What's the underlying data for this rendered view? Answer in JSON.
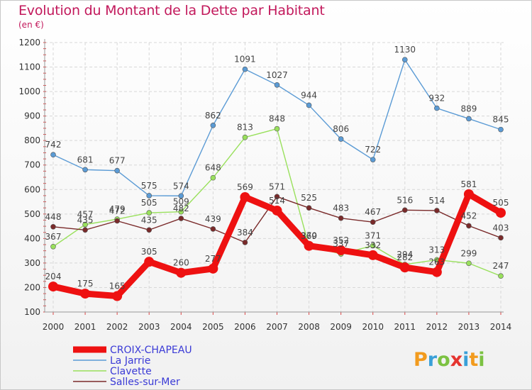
{
  "chart_data": {
    "type": "line",
    "title": "Evolution du Montant de la Dette par Habitant",
    "subtitle": "(en €)",
    "x": [
      "2000",
      "2001",
      "2002",
      "2003",
      "2004",
      "2005",
      "2006",
      "2007",
      "2008",
      "2009",
      "2010",
      "2011",
      "2012",
      "2013",
      "2014"
    ],
    "yticks": [
      100,
      200,
      300,
      400,
      500,
      600,
      700,
      800,
      900,
      1000,
      1100,
      1200
    ],
    "ylim": [
      100,
      1200
    ],
    "grid": true,
    "legend_position": "bottom-left",
    "series": [
      {
        "name": "CROIX-CHAPEAU",
        "color": "#ee1111",
        "values": [
          204,
          175,
          165,
          305,
          260,
          277,
          569,
          514,
          370,
          352,
          332,
          282,
          263,
          581,
          505
        ]
      },
      {
        "name": "La Jarrie",
        "color": "#5b9bd5",
        "values": [
          742,
          681,
          677,
          575,
          574,
          862,
          1091,
          1027,
          944,
          806,
          722,
          1130,
          932,
          889,
          845
        ]
      },
      {
        "name": "Clavette",
        "color": "#99e05c",
        "values": [
          367,
          457,
          479,
          505,
          509,
          648,
          813,
          848,
          369,
          337,
          371,
          294,
          313,
          299,
          247
        ]
      },
      {
        "name": "Salles-sur-Mer",
        "color": "#7a2a2a",
        "values": [
          448,
          435,
          472,
          435,
          482,
          439,
          384,
          571,
          525,
          483,
          467,
          516,
          514,
          452,
          403
        ]
      }
    ]
  },
  "logo": {
    "text": "Proxiti"
  }
}
